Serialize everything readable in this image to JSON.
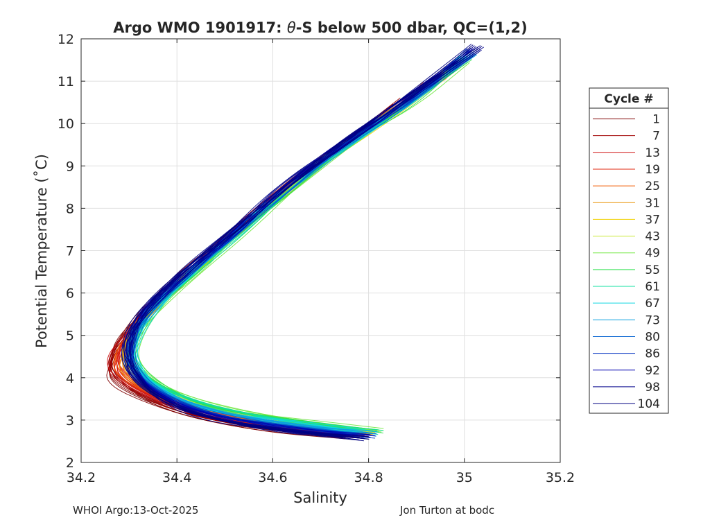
{
  "chart_data": {
    "type": "line",
    "title_prefix": "Argo WMO 1901917: ",
    "title_theta": "θ",
    "title_suffix": "-S below 500 dbar,  QC=(1,2)",
    "xlabel": "Salinity",
    "ylabel": "Potential Temperature (˚C)",
    "xlim": [
      34.2,
      35.2
    ],
    "ylim": [
      2,
      12
    ],
    "xticks": [
      34.2,
      34.4,
      34.6,
      34.8,
      35,
      35.2
    ],
    "xtick_labels": [
      "34.2",
      "34.4",
      "34.6",
      "34.8",
      "35",
      "35.2"
    ],
    "yticks": [
      2,
      3,
      4,
      5,
      6,
      7,
      8,
      9,
      10,
      11,
      12
    ],
    "ytick_labels": [
      "2",
      "3",
      "4",
      "5",
      "6",
      "7",
      "8",
      "9",
      "10",
      "11",
      "12"
    ],
    "grid": true,
    "legend": {
      "title": "Cycle #",
      "position": "right-outside",
      "entries": [
        {
          "label": "1",
          "color": "#800000"
        },
        {
          "label": "7",
          "color": "#a00000"
        },
        {
          "label": "13",
          "color": "#d01010"
        },
        {
          "label": "19",
          "color": "#e02810"
        },
        {
          "label": "25",
          "color": "#f05a00"
        },
        {
          "label": "31",
          "color": "#e89000"
        },
        {
          "label": "37",
          "color": "#f0d000"
        },
        {
          "label": "43",
          "color": "#c8e830"
        },
        {
          "label": "49",
          "color": "#70e840"
        },
        {
          "label": "55",
          "color": "#30e050"
        },
        {
          "label": "61",
          "color": "#10e0a0"
        },
        {
          "label": "67",
          "color": "#10d8e0"
        },
        {
          "label": "73",
          "color": "#0aa0e0"
        },
        {
          "label": "80",
          "color": "#0060d0"
        },
        {
          "label": "86",
          "color": "#0030c0"
        },
        {
          "label": "92",
          "color": "#0000b0"
        },
        {
          "label": "98",
          "color": "#00008a"
        },
        {
          "label": "104",
          "color": "#000080"
        }
      ]
    },
    "series_envelope": {
      "early_cycles_profile": [
        [
          34.76,
          2.6
        ],
        [
          34.6,
          2.75
        ],
        [
          34.45,
          3.0
        ],
        [
          34.33,
          3.4
        ],
        [
          34.26,
          3.9
        ],
        [
          34.25,
          4.3
        ],
        [
          34.28,
          4.9
        ],
        [
          34.33,
          5.6
        ],
        [
          34.42,
          6.5
        ],
        [
          34.52,
          7.5
        ],
        [
          34.62,
          8.5
        ],
        [
          34.74,
          9.5
        ],
        [
          34.86,
          10.4
        ],
        [
          35.0,
          11.5
        ]
      ],
      "mid_cycles_profile": [
        [
          34.82,
          2.75
        ],
        [
          34.65,
          3.0
        ],
        [
          34.48,
          3.3
        ],
        [
          34.37,
          3.75
        ],
        [
          34.31,
          4.3
        ],
        [
          34.31,
          4.9
        ],
        [
          34.35,
          5.6
        ],
        [
          34.44,
          6.5
        ],
        [
          34.54,
          7.5
        ],
        [
          34.64,
          8.5
        ],
        [
          34.76,
          9.5
        ],
        [
          34.88,
          10.4
        ],
        [
          35.0,
          11.5
        ]
      ],
      "late_cycles_profile": [
        [
          34.79,
          2.55
        ],
        [
          34.62,
          2.7
        ],
        [
          34.46,
          3.0
        ],
        [
          34.36,
          3.5
        ],
        [
          34.3,
          4.1
        ],
        [
          34.29,
          4.7
        ],
        [
          34.32,
          5.5
        ],
        [
          34.41,
          6.5
        ],
        [
          34.52,
          7.5
        ],
        [
          34.62,
          8.5
        ],
        [
          34.74,
          9.5
        ],
        [
          34.87,
          10.5
        ],
        [
          35.03,
          11.85
        ]
      ]
    }
  },
  "footer": {
    "left": "WHOI Argo:13-Oct-2025",
    "right": "Jon Turton at bodc"
  }
}
